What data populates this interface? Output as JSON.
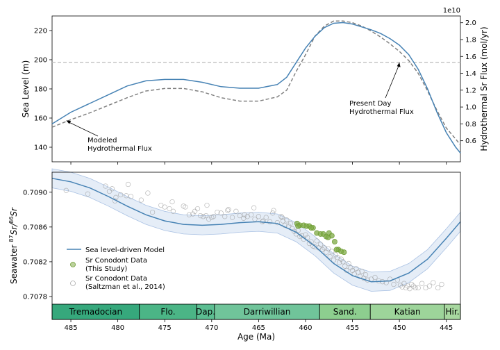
{
  "chart_data": [
    {
      "type": "line",
      "ylabel": "Sea Level (m)",
      "ylabel_right": "Hydrothermal Sr Flux (mol/yr)",
      "right_offset_label": "1e10",
      "xlim": [
        487,
        443.5
      ],
      "ylim": [
        130,
        230
      ],
      "ylim_right": [
        0.35,
        2.08
      ],
      "yticks": [
        140,
        160,
        180,
        200,
        220
      ],
      "yticks_right": [
        0.6,
        0.8,
        1.0,
        1.2,
        1.4,
        1.6,
        1.8,
        2.0
      ],
      "yticks_right_labels": [
        "0.6",
        "0.8",
        "1.0",
        "1.2",
        "1.4",
        "1.6",
        "1.8",
        "2.0"
      ],
      "present_day_flux": 1.53,
      "series": [
        {
          "color": "#4682b4",
          "style": "solid",
          "x": [
            487,
            485,
            483,
            481,
            479,
            477,
            475,
            473,
            471,
            469,
            467,
            465,
            463,
            462,
            461,
            460,
            459,
            458,
            457,
            456,
            455,
            454,
            453,
            452,
            451,
            450,
            449,
            448,
            447,
            446,
            445,
            444,
            443.5
          ],
          "y": [
            156,
            164,
            170,
            176,
            182,
            185.5,
            186.5,
            186.5,
            184.5,
            181.5,
            180.5,
            180.5,
            183,
            188,
            198,
            208,
            216,
            222,
            225,
            225.5,
            224.5,
            222.5,
            220.5,
            218,
            214.5,
            210,
            203.5,
            193.5,
            180,
            164,
            150,
            140,
            136
          ]
        },
        {
          "color": "#808080",
          "style": "dashed",
          "x": [
            487,
            485,
            483,
            481,
            479,
            477,
            475,
            473,
            471,
            469,
            467,
            465,
            463,
            462,
            461,
            460,
            459,
            458,
            457,
            456,
            455,
            454,
            453,
            452,
            451,
            450,
            449,
            448,
            447,
            446,
            445,
            444,
            443.5
          ],
          "y": [
            0.76,
            0.85,
            0.93,
            1.02,
            1.11,
            1.19,
            1.22,
            1.22,
            1.18,
            1.11,
            1.07,
            1.07,
            1.12,
            1.2,
            1.42,
            1.62,
            1.84,
            1.96,
            2.02,
            2.02,
            2.0,
            1.96,
            1.9,
            1.83,
            1.75,
            1.66,
            1.55,
            1.4,
            1.19,
            0.96,
            0.75,
            0.62,
            0.55
          ]
        }
      ],
      "annotations": [
        {
          "lines": [
            "Modeled",
            "Hydrothermal Flux"
          ],
          "point_x": 485.5,
          "point_y": 0.84,
          "axis": "right"
        },
        {
          "lines": [
            "Present Day",
            "Hydrothermal Flux"
          ],
          "point_x": 450,
          "point_y": 1.53,
          "axis": "right"
        }
      ]
    },
    {
      "type": "scatter",
      "xlabel": "Age (Ma)",
      "ylabel": "Seawater 87Sr/86Sr",
      "ylabel_parts": {
        "prefix": "Seawater ",
        "m1": "87",
        "s1": "Sr/",
        "m2": "86",
        "s2": "Sr"
      },
      "xlim": [
        487,
        443.5
      ],
      "ylim": [
        0.70772,
        0.70923
      ],
      "xticks": [
        485,
        480,
        475,
        470,
        465,
        460,
        455,
        450,
        445
      ],
      "yticks": [
        0.7078,
        0.7082,
        0.7086,
        0.709
      ],
      "ytick_labels": [
        "0.7078",
        "0.7082",
        "0.7086",
        "0.7090"
      ],
      "legend_position": "lower-left",
      "legend": [
        {
          "type": "line",
          "label": "Sea level-driven Model"
        },
        {
          "type": "filled",
          "label": "Sr Conodont Data",
          "label2": "(This Study)"
        },
        {
          "type": "open",
          "label": "Sr Conodont Data",
          "label2": "(Saltzman et al., 2014)"
        }
      ],
      "model": {
        "color": "#4682b4",
        "band_halfwidth": 0.00011,
        "x": [
          487,
          485,
          483,
          481,
          479,
          477,
          475,
          473,
          471,
          469,
          467,
          465,
          463,
          461,
          459,
          457,
          455,
          453,
          451,
          449,
          447,
          445,
          443.5
        ],
        "y": [
          0.70916,
          0.70912,
          0.70905,
          0.70895,
          0.70884,
          0.70874,
          0.70867,
          0.70863,
          0.70862,
          0.70863,
          0.70865,
          0.70866,
          0.70864,
          0.70854,
          0.70838,
          0.70818,
          0.70804,
          0.70797,
          0.70798,
          0.70807,
          0.70823,
          0.70847,
          0.70866
        ]
      },
      "this_study": {
        "color": "#6b9a30",
        "x": [
          460.9,
          460.6,
          460.2,
          459.9,
          459.6,
          459.2,
          458.8,
          458.4,
          458.1,
          457.8,
          457.5,
          457.2,
          456.9,
          456.5,
          456.2,
          455.9,
          460.8,
          459.4,
          457.6,
          456.7
        ],
        "y": [
          0.70864,
          0.70862,
          0.70862,
          0.70861,
          0.70861,
          0.70859,
          0.70853,
          0.70852,
          0.70852,
          0.70849,
          0.70853,
          0.7085,
          0.70843,
          0.70834,
          0.70832,
          0.70831,
          0.70861,
          0.70859,
          0.70848,
          0.70834
        ]
      },
      "saltzman": {
        "x": [
          485.5,
          483.2,
          481.3,
          480.9,
          480.6,
          480.3,
          479.7,
          479.1,
          478.6,
          477.5,
          476.8,
          475.4,
          475.0,
          474.5,
          474.1,
          473.0,
          472.4,
          472.0,
          471.8,
          471.5,
          471.2,
          470.9,
          470.6,
          470.3,
          470.0,
          469.8,
          469.4,
          469.0,
          468.6,
          468.2,
          467.8,
          467.4,
          467.0,
          466.6,
          466.2,
          465.8,
          465.4,
          465.0,
          464.6,
          464.2,
          463.8,
          463.4,
          463.0,
          462.6,
          462.4,
          462.2,
          462.0,
          461.8,
          461.6,
          461.4,
          461.2,
          461.0,
          460.8,
          460.6,
          460.4,
          460.2,
          460.0,
          459.8,
          459.6,
          459.4,
          459.2,
          459.0,
          458.8,
          458.6,
          458.4,
          458.2,
          458.0,
          457.8,
          457.6,
          457.4,
          457.2,
          457.0,
          456.8,
          456.6,
          456.4,
          456.2,
          456.0,
          455.8,
          455.6,
          455.4,
          455.2,
          455.0,
          454.8,
          454.6,
          454.4,
          454.2,
          454.0,
          453.8,
          453.6,
          453.4,
          453.0,
          452.6,
          452.2,
          451.8,
          451.4,
          451.0,
          450.6,
          450.2,
          449.9,
          449.7,
          449.5,
          449.3,
          449.1,
          448.9,
          448.7,
          448.5,
          448.3,
          448.0,
          447.6,
          447.2,
          446.8,
          446.4,
          445.9,
          445.5,
          462.5,
          463.5,
          464.5,
          465.5,
          466.5,
          468.3,
          470.5,
          472.8,
          474.2,
          476.3,
          478.9,
          480.2
        ],
        "y": [
          0.70902,
          0.70898,
          0.70907,
          0.70901,
          0.70904,
          0.7089,
          0.70897,
          0.70896,
          0.70895,
          0.70891,
          0.70899,
          0.70885,
          0.70883,
          0.70881,
          0.70878,
          0.70884,
          0.70874,
          0.70875,
          0.70878,
          0.70881,
          0.70873,
          0.70872,
          0.70873,
          0.70869,
          0.70871,
          0.70872,
          0.70877,
          0.70876,
          0.70872,
          0.7088,
          0.70871,
          0.70878,
          0.70873,
          0.7087,
          0.70872,
          0.70874,
          0.70869,
          0.70872,
          0.70866,
          0.70871,
          0.70866,
          0.70879,
          0.70865,
          0.70872,
          0.70867,
          0.70862,
          0.70868,
          0.70861,
          0.70864,
          0.70858,
          0.70855,
          0.70852,
          0.70856,
          0.70849,
          0.7085,
          0.70846,
          0.70851,
          0.70848,
          0.70841,
          0.70843,
          0.70838,
          0.70837,
          0.70844,
          0.70836,
          0.7084,
          0.70834,
          0.70836,
          0.70831,
          0.70835,
          0.70826,
          0.70832,
          0.70822,
          0.70828,
          0.70825,
          0.70819,
          0.70823,
          0.7082,
          0.70815,
          0.7081,
          0.70818,
          0.70813,
          0.7081,
          0.70806,
          0.70812,
          0.70808,
          0.70803,
          0.70809,
          0.70801,
          0.70805,
          0.70799,
          0.708,
          0.70802,
          0.70798,
          0.70797,
          0.70796,
          0.708,
          0.70794,
          0.70799,
          0.70793,
          0.70791,
          0.70795,
          0.7079,
          0.70792,
          0.70789,
          0.70794,
          0.70792,
          0.7079,
          0.7079,
          0.70795,
          0.7079,
          0.70792,
          0.70796,
          0.7079,
          0.70794,
          0.70871,
          0.70876,
          0.70867,
          0.70882,
          0.70874,
          0.70879,
          0.70885,
          0.70883,
          0.70889,
          0.70877,
          0.70909,
          0.70894
        ]
      },
      "stages": [
        {
          "name": "Tremadocian",
          "start": 487,
          "end": 477.7,
          "color": "#36a87c"
        },
        {
          "name": "Flo.",
          "start": 477.7,
          "end": 471.6,
          "color": "#4bb586"
        },
        {
          "name": "Dap.",
          "start": 471.6,
          "end": 469.7,
          "color": "#5cbe92"
        },
        {
          "name": "Darriwillian",
          "start": 469.7,
          "end": 458.5,
          "color": "#70c49a"
        },
        {
          "name": "Sand.",
          "start": 458.5,
          "end": 453.1,
          "color": "#8dce8f"
        },
        {
          "name": "Katian",
          "start": 453.1,
          "end": 445.2,
          "color": "#9dd49a"
        },
        {
          "name": "Hir.",
          "start": 445.2,
          "end": 443.5,
          "color": "#a8d8a0"
        }
      ]
    }
  ]
}
